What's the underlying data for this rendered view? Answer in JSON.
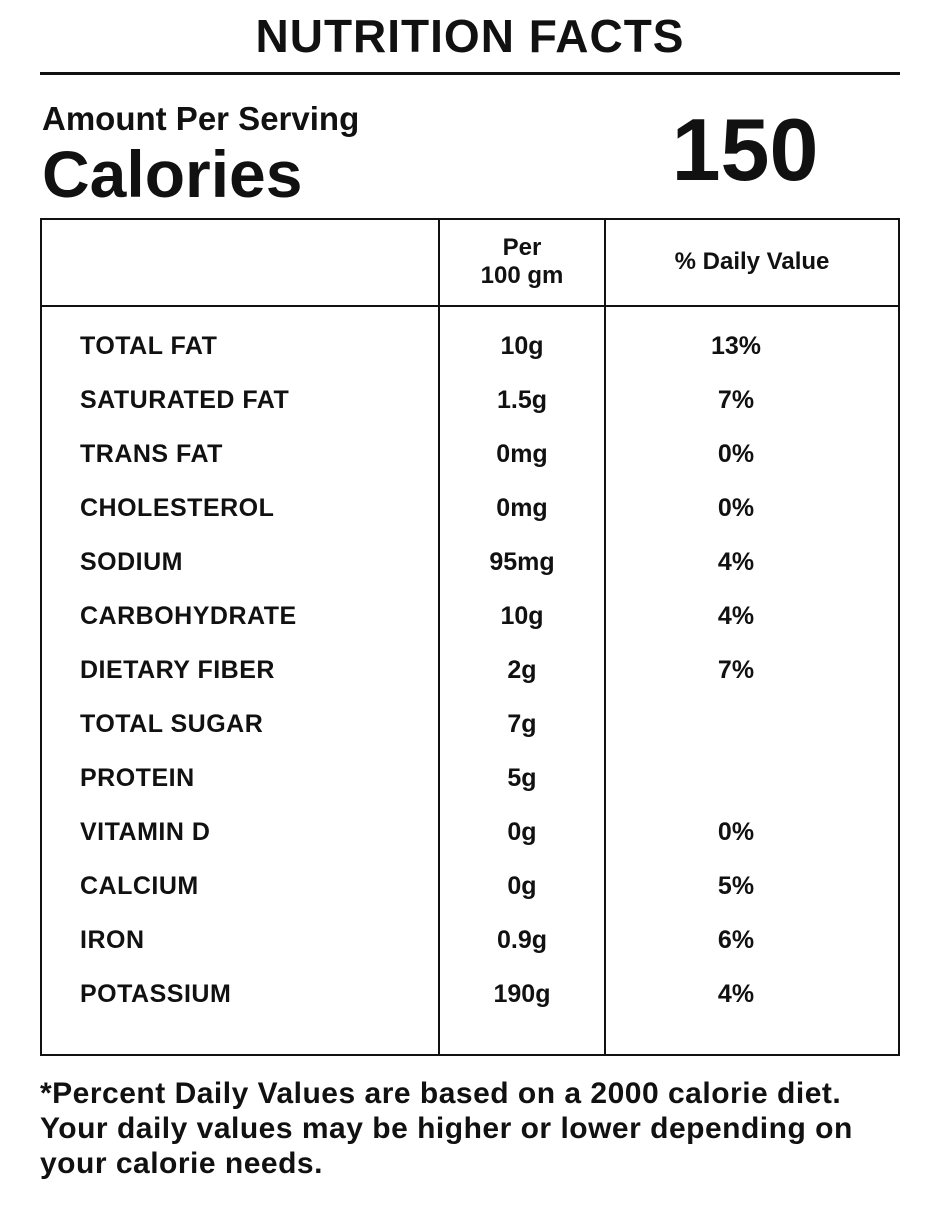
{
  "header": {
    "title": "NUTRITION FACTS",
    "amount_per_serving": "Amount Per Serving",
    "calories_label": "Calories",
    "calories_value": "150"
  },
  "table": {
    "columns": {
      "per_line1": "Per",
      "per_line2": "100 gm",
      "daily_value": "% Daily Value"
    },
    "rows": [
      {
        "name": "TOTAL FAT",
        "amount": "10g",
        "dv": "13%"
      },
      {
        "name": "SATURATED FAT",
        "amount": "1.5g",
        "dv": "7%"
      },
      {
        "name": "TRANS FAT",
        "amount": "0mg",
        "dv": "0%"
      },
      {
        "name": "CHOLESTEROL",
        "amount": "0mg",
        "dv": "0%"
      },
      {
        "name": "SODIUM",
        "amount": "95mg",
        "dv": "4%"
      },
      {
        "name": "CARBOHYDRATE",
        "amount": "10g",
        "dv": "4%"
      },
      {
        "name": "DIETARY FIBER",
        "amount": "2g",
        "dv": "7%"
      },
      {
        "name": "TOTAL SUGAR",
        "amount": "7g",
        "dv": ""
      },
      {
        "name": "PROTEIN",
        "amount": "5g",
        "dv": ""
      },
      {
        "name": "VITAMIN D",
        "amount": "0g",
        "dv": "0%"
      },
      {
        "name": "CALCIUM",
        "amount": "0g",
        "dv": "5%"
      },
      {
        "name": "IRON",
        "amount": "0.9g",
        "dv": "6%"
      },
      {
        "name": "POTASSIUM",
        "amount": "190g",
        "dv": "4%"
      }
    ]
  },
  "footnote": "*Percent Daily Values are based on a 2000 calorie diet. Your daily values may be higher or lower depending on your calorie needs."
}
